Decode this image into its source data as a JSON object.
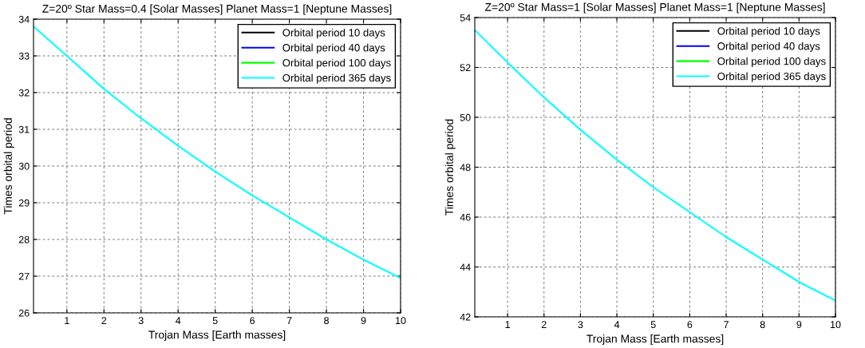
{
  "chart_data": [
    {
      "type": "line",
      "title": "Z=20º Star Mass=0.4 [Solar Masses] Planet Mass=1 [Neptune Masses]",
      "xlabel": "Trojan Mass [Earth masses]",
      "ylabel": "Times orbital period",
      "x": [
        0.1,
        1,
        2,
        3,
        4,
        5,
        6,
        7,
        8,
        9,
        10
      ],
      "series": [
        {
          "name": "Orbital period 10 days",
          "color": "#000000",
          "values": [
            null,
            null,
            null,
            null,
            null,
            null,
            null,
            null,
            null,
            null,
            null
          ]
        },
        {
          "name": "Orbital period 40 days",
          "color": "#0000ff",
          "values": [
            null,
            null,
            null,
            null,
            null,
            null,
            null,
            null,
            null,
            null,
            null
          ]
        },
        {
          "name": "Orbital period 100 days",
          "color": "#00ff00",
          "values": [
            null,
            null,
            null,
            null,
            null,
            null,
            null,
            null,
            null,
            null,
            null
          ]
        },
        {
          "name": "Orbital period 365 days",
          "color": "#00ffff",
          "values": [
            33.8,
            33.0,
            32.1,
            31.3,
            30.55,
            29.85,
            29.2,
            28.6,
            28.0,
            27.45,
            26.95
          ]
        }
      ],
      "xlim": [
        0.1,
        10
      ],
      "xticks": [
        1,
        2,
        3,
        4,
        5,
        6,
        7,
        8,
        9,
        10
      ],
      "ylim": [
        26,
        34
      ],
      "yticks": [
        26,
        27,
        28,
        29,
        30,
        31,
        32,
        33,
        34
      ],
      "grid": true,
      "legend": "top right",
      "line_style": "solid"
    },
    {
      "type": "line",
      "title": "Z=20º Star Mass=1 [Solar Masses] Planet Mass=1 [Neptune Masses]",
      "xlabel": "Trojan Mass [Earth masses]",
      "ylabel": "Times orbital period",
      "x": [
        0.1,
        1,
        2,
        3,
        4,
        5,
        6,
        7,
        8,
        9,
        10
      ],
      "series": [
        {
          "name": "Orbital period 10 days",
          "color": "#000000",
          "values": [
            null,
            null,
            null,
            null,
            null,
            null,
            null,
            null,
            null,
            null,
            null
          ]
        },
        {
          "name": "Orbital period 40 days",
          "color": "#0000ff",
          "values": [
            null,
            null,
            null,
            null,
            null,
            null,
            null,
            null,
            null,
            null,
            null
          ]
        },
        {
          "name": "Orbital period 100 days",
          "color": "#00ff00",
          "values": [
            null,
            null,
            null,
            null,
            null,
            null,
            null,
            null,
            null,
            null,
            null
          ]
        },
        {
          "name": "Orbital period 365 days",
          "color": "#00ffff",
          "values": [
            53.5,
            52.2,
            50.8,
            49.5,
            48.3,
            47.2,
            46.2,
            45.2,
            44.3,
            43.4,
            42.65
          ]
        }
      ],
      "xlim": [
        0.1,
        10
      ],
      "xticks": [
        1,
        2,
        3,
        4,
        5,
        6,
        7,
        8,
        9,
        10
      ],
      "ylim": [
        42,
        54
      ],
      "yticks": [
        42,
        44,
        46,
        48,
        50,
        52,
        54
      ],
      "grid": true,
      "legend": "top right",
      "line_style": "solid"
    }
  ]
}
